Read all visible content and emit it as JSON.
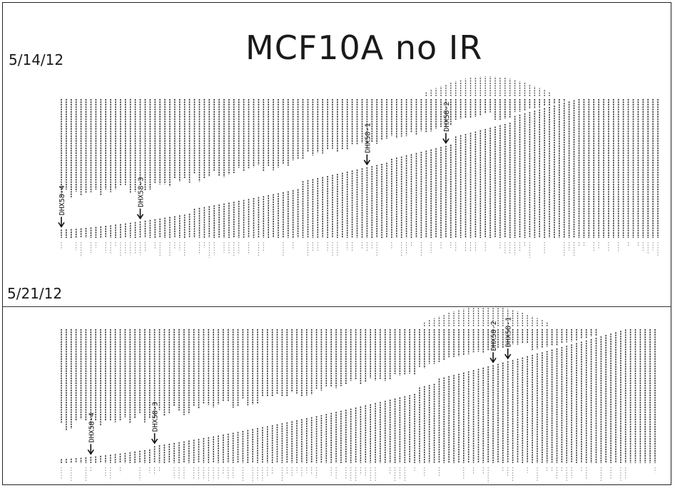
{
  "title": "MCF10A no IR",
  "chart_data": [
    {
      "type": "bar",
      "panel_label": "5/14/12",
      "annotations": [
        {
          "label": "DHX58-4",
          "bar_index": 0
        },
        {
          "label": "DHX58-3",
          "bar_index": 16
        },
        {
          "label": "DHX58-1",
          "bar_index": 62
        },
        {
          "label": "DHX58-2",
          "bar_index": 78
        }
      ]
    },
    {
      "type": "bar",
      "panel_label": "5/21/12",
      "annotations": [
        {
          "label": "DHX58-4",
          "bar_index": 6
        },
        {
          "label": "DHX58-3",
          "bar_index": 19
        },
        {
          "label": "DHX58-2",
          "bar_index": 88
        },
        {
          "label": "DHX58-1",
          "bar_index": 91
        }
      ]
    }
  ]
}
